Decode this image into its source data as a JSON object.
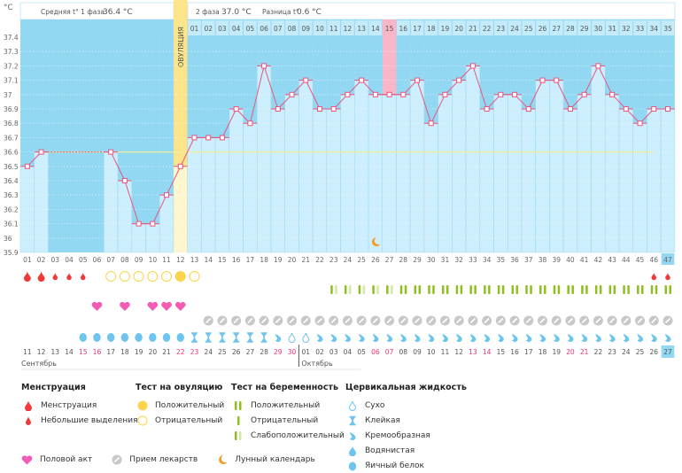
{
  "header": {
    "unit": "°C",
    "phase1_label": "Средняя t° 1 фаза",
    "phase1_value": "36.4 °C",
    "phase2_label": "2 фаза",
    "phase2_value": "37.0 °C",
    "diff_label": "Разница t°",
    "diff_value": "0.6 °C",
    "ovulation_label": "ОВУЛЯЦИЯ"
  },
  "colors": {
    "chart_bg": "#93d8f2",
    "bar_fill": "#cdeefc",
    "line": "#e8557f",
    "cover_line": "#f2ef9a",
    "ovulation": "#fbe48a",
    "highlight_day": "#f8b6c8",
    "today": "#93d8f2",
    "weekend": "#e8356b"
  },
  "chart_data": {
    "type": "line",
    "title": "",
    "ylabel": "°C",
    "ylim": [
      35.9,
      37.4
    ],
    "yticks": [
      "37.4",
      "37.3",
      "37.2",
      "37.1",
      "37",
      "36.9",
      "36.8",
      "36.7",
      "36.6",
      "36.5",
      "36.4",
      "36.3",
      "36.2",
      "36.1",
      "36",
      "35.9"
    ],
    "grid": true,
    "cycle_days": [
      "01",
      "02",
      "03",
      "04",
      "05",
      "06",
      "07",
      "08",
      "09",
      "10",
      "11",
      "12",
      "13",
      "14",
      "15",
      "16",
      "17",
      "18",
      "19",
      "20",
      "21",
      "22",
      "23",
      "24",
      "25",
      "26",
      "27",
      "28",
      "29",
      "30",
      "31",
      "32",
      "33",
      "34",
      "35",
      "36",
      "37",
      "38",
      "39",
      "40",
      "41",
      "42",
      "43",
      "44",
      "45",
      "46",
      "47"
    ],
    "temperatures": [
      36.5,
      36.6,
      null,
      null,
      null,
      null,
      36.6,
      36.4,
      36.1,
      36.1,
      36.3,
      36.5,
      36.7,
      36.7,
      36.7,
      36.9,
      36.8,
      37.2,
      36.9,
      37.0,
      37.1,
      36.9,
      36.9,
      37.0,
      37.1,
      37.0,
      37.0,
      37.0,
      37.1,
      36.8,
      37.0,
      37.1,
      37.2,
      36.9,
      37.0,
      37.0,
      36.9,
      37.1,
      37.1,
      36.9,
      37.0,
      37.2,
      37.0,
      36.9,
      36.8,
      36.9,
      36.9
    ],
    "cover_line": 36.6,
    "ovulation_day": 12,
    "phase2_day_labels": [
      "01",
      "02",
      "03",
      "04",
      "05",
      "06",
      "07",
      "08",
      "09",
      "10",
      "11",
      "12",
      "13",
      "14",
      "15",
      "16",
      "17",
      "18",
      "19",
      "20",
      "21",
      "22",
      "23",
      "24",
      "25",
      "26",
      "27",
      "28",
      "29",
      "30",
      "31",
      "32",
      "33",
      "34",
      "35"
    ],
    "highlighted_phase2_day": "15",
    "moon_day": 26,
    "today_day": 47
  },
  "calendar": {
    "dates": [
      "11",
      "12",
      "13",
      "14",
      "15",
      "16",
      "17",
      "18",
      "19",
      "20",
      "21",
      "22",
      "23",
      "24",
      "25",
      "26",
      "27",
      "28",
      "29",
      "30",
      "01",
      "02",
      "03",
      "04",
      "05",
      "06",
      "07",
      "08",
      "09",
      "10",
      "11",
      "12",
      "13",
      "14",
      "15",
      "16",
      "17",
      "18",
      "19",
      "20",
      "21",
      "22",
      "23",
      "24",
      "25",
      "26",
      "27"
    ],
    "weekend": [
      false,
      false,
      false,
      false,
      true,
      true,
      false,
      false,
      false,
      false,
      false,
      true,
      true,
      false,
      false,
      false,
      false,
      false,
      true,
      true,
      false,
      false,
      false,
      false,
      false,
      true,
      true,
      false,
      false,
      false,
      false,
      false,
      true,
      true,
      false,
      false,
      false,
      false,
      false,
      true,
      true,
      false,
      false,
      false,
      false,
      false,
      false
    ],
    "month1": "Сентябрь",
    "month2": "Октябрь"
  },
  "rows": {
    "menstruation": [
      "heavy",
      "heavy",
      "light",
      "light",
      "light",
      null,
      null,
      null,
      null,
      null,
      null,
      null,
      null,
      null,
      null,
      null,
      null,
      null,
      null,
      null,
      null,
      null,
      null,
      null,
      null,
      null,
      null,
      null,
      null,
      null,
      null,
      null,
      null,
      null,
      null,
      null,
      null,
      null,
      null,
      null,
      null,
      null,
      null,
      null,
      null,
      "light",
      "light"
    ],
    "ovulation_test": [
      null,
      null,
      null,
      null,
      null,
      null,
      "neg",
      "neg",
      "neg",
      "neg",
      "neg",
      "pos",
      "neg",
      null,
      null,
      null,
      null,
      null,
      null,
      null,
      null,
      null,
      null,
      null,
      null,
      null,
      null,
      null,
      null,
      null,
      null,
      null,
      null,
      null,
      null,
      null,
      null,
      null,
      null,
      null,
      null,
      null,
      null,
      null,
      null,
      null,
      null
    ],
    "pregnancy_test": [
      null,
      null,
      null,
      null,
      null,
      null,
      null,
      null,
      null,
      null,
      null,
      null,
      null,
      null,
      null,
      null,
      null,
      null,
      null,
      null,
      null,
      null,
      "weak",
      "weak",
      "weak",
      "weak",
      "weak",
      "pos",
      "pos",
      "pos",
      "pos",
      "pos",
      "pos",
      "pos",
      "pos",
      "pos",
      "pos",
      "pos",
      "pos",
      "pos",
      "pos",
      "pos",
      "pos",
      "pos",
      "pos",
      "pos",
      "pos"
    ],
    "intercourse": [
      null,
      null,
      null,
      null,
      null,
      true,
      null,
      true,
      null,
      true,
      true,
      true,
      null,
      null,
      null,
      null,
      null,
      null,
      null,
      null,
      null,
      null,
      null,
      null,
      null,
      null,
      null,
      null,
      null,
      null,
      null,
      null,
      null,
      null,
      null,
      null,
      null,
      null,
      null,
      null,
      null,
      null,
      null,
      null,
      null,
      null,
      null
    ],
    "medication": [
      null,
      null,
      null,
      null,
      null,
      null,
      null,
      null,
      null,
      null,
      null,
      null,
      null,
      true,
      true,
      true,
      true,
      true,
      true,
      true,
      true,
      true,
      true,
      true,
      true,
      true,
      true,
      true,
      true,
      true,
      true,
      true,
      true,
      true,
      true,
      true,
      true,
      true,
      true,
      true,
      true,
      true,
      true,
      true,
      true,
      true,
      true
    ],
    "cervical": [
      null,
      null,
      null,
      null,
      "egg",
      "egg",
      "egg",
      "egg",
      "egg",
      "egg",
      "egg",
      "egg",
      "sticky",
      "sticky",
      "sticky",
      "sticky",
      "sticky",
      "sticky",
      "creamy",
      "dry",
      "dry",
      "creamy",
      "creamy",
      "creamy",
      "creamy",
      "creamy",
      "creamy",
      "creamy",
      "creamy",
      "creamy",
      "creamy",
      "creamy",
      "creamy",
      "creamy",
      "creamy",
      "creamy",
      "creamy",
      "creamy",
      "creamy",
      "creamy",
      "creamy",
      "creamy",
      "creamy",
      "creamy",
      "creamy",
      "creamy",
      "creamy"
    ]
  },
  "legend": {
    "menstruation_title": "Менструация",
    "menstruation_heavy": "Менструация",
    "menstruation_light": "Небольшие выделения",
    "ovtest_title": "Тест на овуляцию",
    "ovtest_pos": "Положительный",
    "ovtest_neg": "Отрицательный",
    "pregtest_title": "Тест на беременность",
    "pregtest_pos": "Положительный",
    "pregtest_neg": "Отрицательный",
    "pregtest_weak": "Слабоположительный",
    "cervical_title": "Цервикальная жидкость",
    "cervical_dry": "Сухо",
    "cervical_sticky": "Клейкая",
    "cervical_creamy": "Кремообразная",
    "cervical_watery": "Водянистая",
    "cervical_egg": "Яичный белок",
    "intercourse": "Половой акт",
    "medication": "Прием лекарств",
    "moon": "Лунный календарь"
  }
}
